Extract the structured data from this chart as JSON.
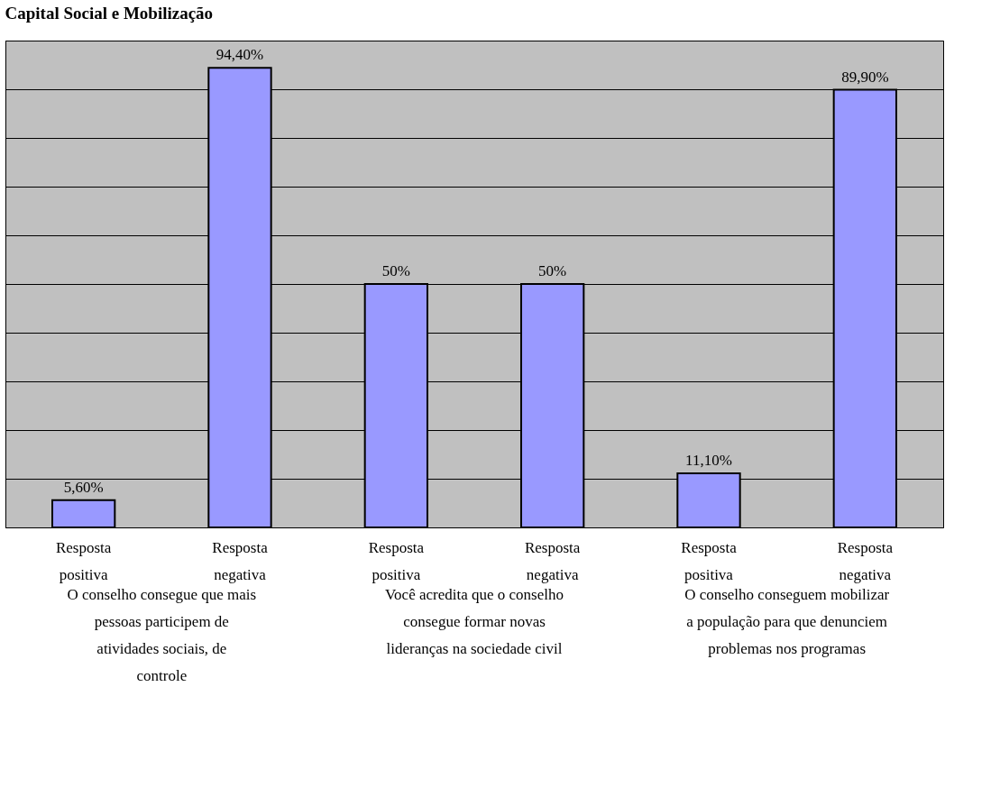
{
  "chart_data": {
    "type": "bar",
    "title": "Capital Social e Mobilização",
    "categories": [
      "Resposta positiva",
      "Resposta negativa",
      "Resposta positiva",
      "Resposta negativa",
      "Resposta positiva",
      "Resposta negativa"
    ],
    "values": [
      5.6,
      94.4,
      50,
      50,
      11.1,
      89.9
    ],
    "value_labels": [
      "5,60%",
      "94,40%",
      "50%",
      "50%",
      "11,10%",
      "89,90%"
    ],
    "color": "#9999ff",
    "ylim": [
      0,
      100
    ],
    "yticks": [
      {
        "value": 0,
        "label": null
      },
      {
        "value": 10,
        "label": null
      },
      {
        "value": 20,
        "label": null
      },
      {
        "value": 30,
        "label": null
      },
      {
        "value": 40,
        "label": null
      },
      {
        "value": 50,
        "label": null
      },
      {
        "value": 60,
        "label": null
      },
      {
        "value": 70,
        "label": null
      },
      {
        "value": 80,
        "label": null
      },
      {
        "value": 90,
        "label": null
      },
      {
        "value": 100,
        "label": null
      }
    ],
    "tick_labels": "x",
    "grid": "y",
    "annotations": [
      "O conselho consegue que mais pessoas participem de atividades sociais, de controle",
      "Você acredita que o conselho consegue formar novas lideranças na sociedade civil",
      "O conselho conseguem mobilizar a população para que denunciem problemas nos programas"
    ]
  }
}
